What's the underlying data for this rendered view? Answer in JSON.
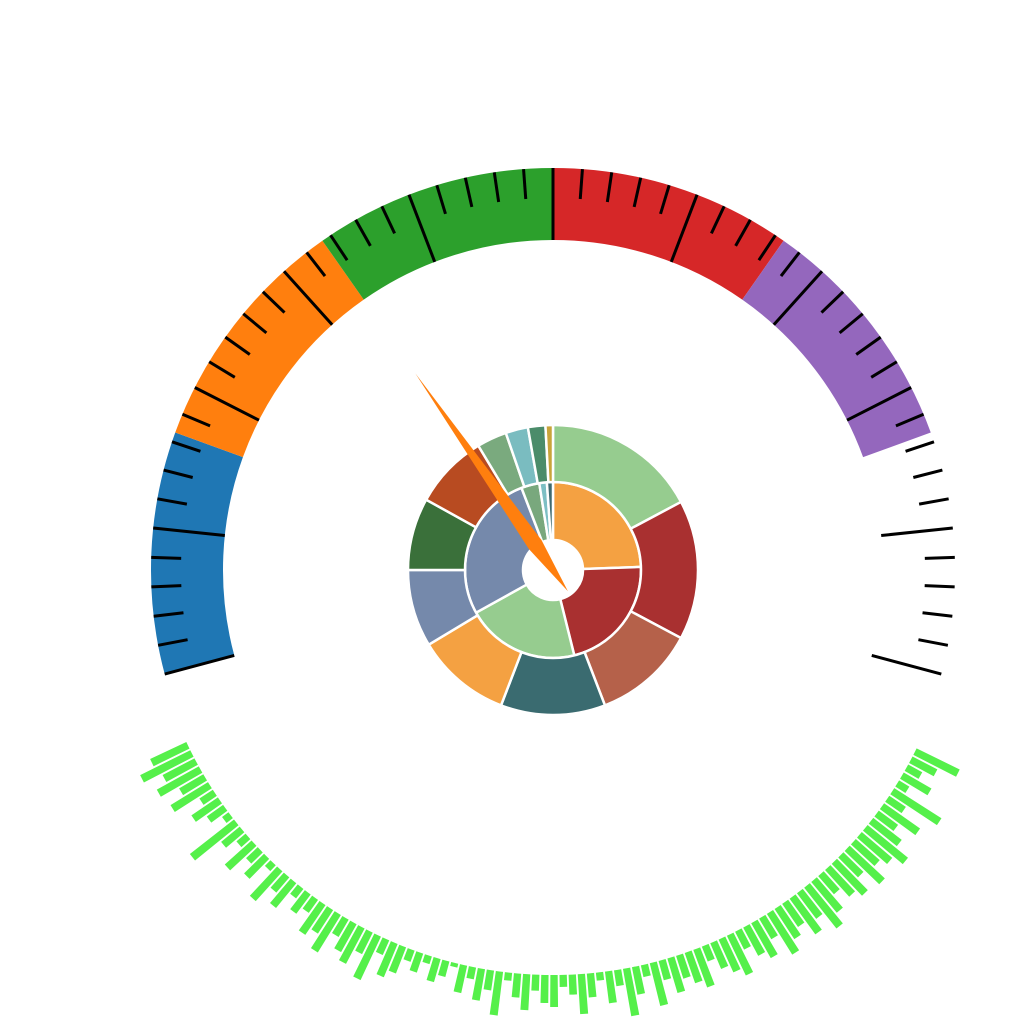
{
  "chart_data": [
    {
      "type": "gauge",
      "lim": [
        0,
        30
      ],
      "value": 10,
      "needle_color": "#ff7f0e",
      "bands": [
        {
          "from": 0,
          "to": 5,
          "color": "#1f77b4"
        },
        {
          "from": 5,
          "to": 10,
          "color": "#ff7f0e"
        },
        {
          "from": 10,
          "to": 15,
          "color": "#2ca02c"
        },
        {
          "from": 15,
          "to": 20,
          "color": "#d62728"
        },
        {
          "from": 20,
          "to": 25,
          "color": "#9467bd"
        }
      ],
      "ticks": [
        0,
        3,
        6,
        9,
        12,
        15,
        18,
        21,
        24,
        27,
        30
      ],
      "minor_ticks": [
        0.6,
        1.2,
        1.8,
        2.4,
        3.6,
        4.2,
        4.8,
        5.4,
        6.6,
        7.2,
        7.8,
        8.4,
        9.6,
        10.2,
        10.8,
        11.4,
        12.6,
        13.2,
        13.8,
        14.4,
        15.6,
        16.2,
        16.8,
        17.4,
        18.6,
        19.2,
        19.8,
        20.4,
        21.6,
        22.2,
        22.8,
        23.4,
        24.6,
        25.2,
        25.8,
        26.4,
        27.6,
        28.2,
        28.8,
        29.4
      ]
    },
    {
      "type": "sunburst",
      "inner": {
        "values": [
          88,
          78,
          75,
          98,
          12,
          5,
          4
        ],
        "colors": [
          "#f4a142",
          "#a93030",
          "#96cc8f",
          "#7589ab",
          "#79a87d",
          "#7dbfc4",
          "#3d6a70"
        ]
      },
      "outer": {
        "values": [
          62,
          56,
          41,
          42,
          38,
          31,
          29,
          30,
          12,
          9,
          7,
          3
        ],
        "colors": [
          "#96cc8f",
          "#a93030",
          "#b5614a",
          "#3a6b70",
          "#f4a142",
          "#7589ab",
          "#3a703a",
          "#b84b21",
          "#7aaa7e",
          "#7abcc0",
          "#4b8c6a",
          "#c9a43a"
        ]
      }
    },
    {
      "type": "radial-bar",
      "color": "#55f04a",
      "ylim": [
        0,
        100
      ],
      "values": [
        60,
        35,
        20,
        40,
        15,
        70,
        25,
        55,
        30,
        45,
        65,
        50,
        40,
        60,
        35,
        55,
        45,
        30,
        50,
        65,
        40,
        55,
        35,
        45,
        60,
        30,
        50,
        40,
        25,
        55,
        45,
        35,
        20,
        50,
        40,
        30,
        45,
        25,
        55,
        15,
        35,
        60,
        20,
        40,
        10,
        30,
        50,
        25,
        15,
        40,
        35,
        20,
        45,
        30,
        10,
        55,
        25,
        40,
        15,
        35,
        5,
        20,
        30,
        10,
        25,
        15,
        35,
        45,
        20,
        60,
        30,
        50,
        40,
        25,
        55,
        35,
        45,
        20,
        30,
        15,
        40,
        25,
        50,
        10,
        35,
        20,
        45,
        15,
        30,
        70,
        10,
        25,
        40,
        20,
        55,
        35,
        60,
        45,
        70,
        50
      ]
    }
  ]
}
